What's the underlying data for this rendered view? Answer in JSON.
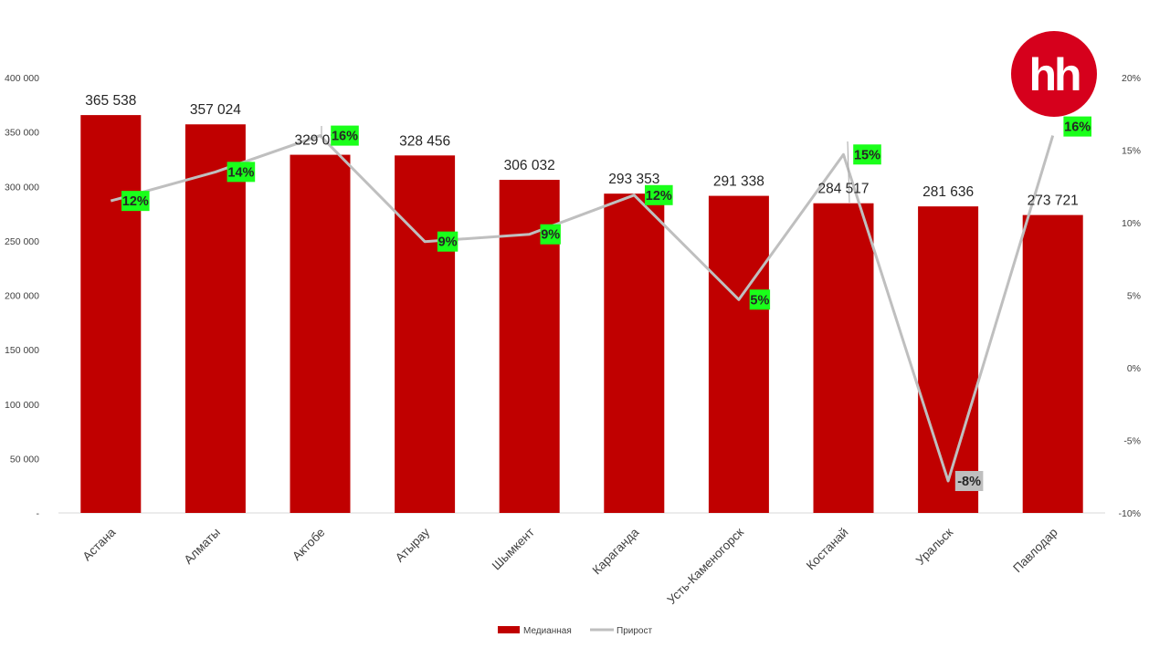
{
  "logo": {
    "text": "hh",
    "color": "#d6001c"
  },
  "chart_data": {
    "type": "bar",
    "categories": [
      "Астана",
      "Алматы",
      "Актобе",
      "Атырау",
      "Шымкент",
      "Караганда",
      "Усть-Каменогорск",
      "Костанай",
      "Уральск",
      "Павлодар"
    ],
    "series": [
      {
        "name": "Медианная",
        "type": "bar",
        "axis": "left",
        "color": "#c00000",
        "values": [
          365538,
          357024,
          329079,
          328456,
          306032,
          293353,
          291338,
          284517,
          281636,
          273721
        ],
        "labels": [
          "365 538",
          "357 024",
          "329 079",
          "328 456",
          "306 032",
          "293 353",
          "291 338",
          "284 517",
          "281 636",
          "273 721"
        ]
      },
      {
        "name": "Прирост",
        "type": "line",
        "axis": "right",
        "color": "#bfbfbf",
        "values": [
          11.5,
          13.5,
          16.0,
          8.7,
          9.2,
          11.9,
          4.7,
          14.7,
          -7.8,
          16.0
        ],
        "labels": [
          "12%",
          "14%",
          "16%",
          "9%",
          "9%",
          "12%",
          "5%",
          "15%",
          "-8%",
          "16%"
        ],
        "label_colors": [
          "#1aff1a",
          "#1aff1a",
          "#1aff1a",
          "#1aff1a",
          "#1aff1a",
          "#1aff1a",
          "#1aff1a",
          "#1aff1a",
          "#bfbfbf",
          "#1aff1a"
        ]
      }
    ],
    "y_left": {
      "ylim": [
        0,
        400000
      ],
      "ticks": [
        0,
        50000,
        100000,
        150000,
        200000,
        250000,
        300000,
        350000,
        400000
      ],
      "tick_labels": [
        "-",
        "50 000",
        "100 000",
        "150 000",
        "200 000",
        "250 000",
        "300 000",
        "350 000",
        "400 000"
      ]
    },
    "y_right": {
      "ylim": [
        -10,
        20
      ],
      "ticks": [
        -10,
        -5,
        0,
        5,
        10,
        15,
        20
      ],
      "tick_labels": [
        "-10%",
        "-5%",
        "0%",
        "5%",
        "10%",
        "15%",
        "20%"
      ]
    },
    "title": "",
    "xlabel": "",
    "ylabel": "",
    "grid": false,
    "legend_position": "bottom"
  }
}
